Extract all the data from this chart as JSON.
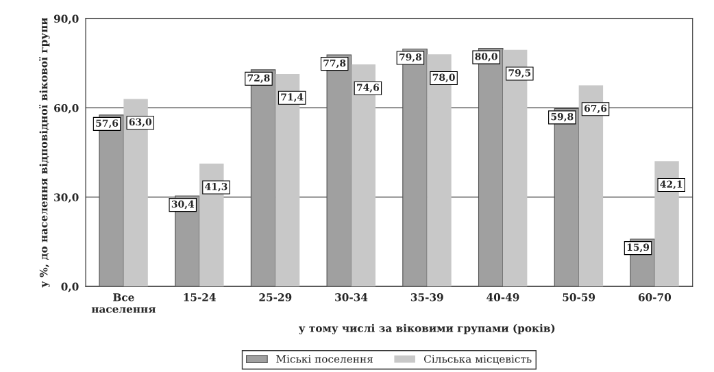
{
  "chart_data": {
    "type": "bar",
    "categories": [
      "Все населення",
      "15-24",
      "25-29",
      "30-34",
      "35-39",
      "40-49",
      "50-59",
      "60-70"
    ],
    "series": [
      {
        "name": "Міські поселення",
        "color": "#a0a0a0",
        "values": [
          57.6,
          30.4,
          72.8,
          77.8,
          79.8,
          80.0,
          59.8,
          15.9
        ],
        "value_labels": [
          "57,6",
          "30,4",
          "72,8",
          "77,8",
          "79,8",
          "80,0",
          "59,8",
          "15,9"
        ]
      },
      {
        "name": "Сільська місцевість",
        "color": "#c8c8c8",
        "values": [
          63.0,
          41.3,
          71.4,
          74.6,
          78.0,
          79.5,
          67.6,
          42.1
        ],
        "value_labels": [
          "63,0",
          "41,3",
          "71,4",
          "74,6",
          "78,0",
          "79,5",
          "67,6",
          "42,1"
        ]
      }
    ],
    "ylabel": "у %, до населення відповідної вікової групи",
    "annotations": [
      "у тому числі за віковими групами (років)"
    ],
    "ylim": [
      0,
      90
    ],
    "yticks": [
      {
        "value": 0,
        "label": "0,0"
      },
      {
        "value": 30,
        "label": "30,0"
      },
      {
        "value": 60,
        "label": "60,0"
      },
      {
        "value": 90,
        "label": "90,0"
      }
    ],
    "grid": "y",
    "legend": "bottom"
  }
}
